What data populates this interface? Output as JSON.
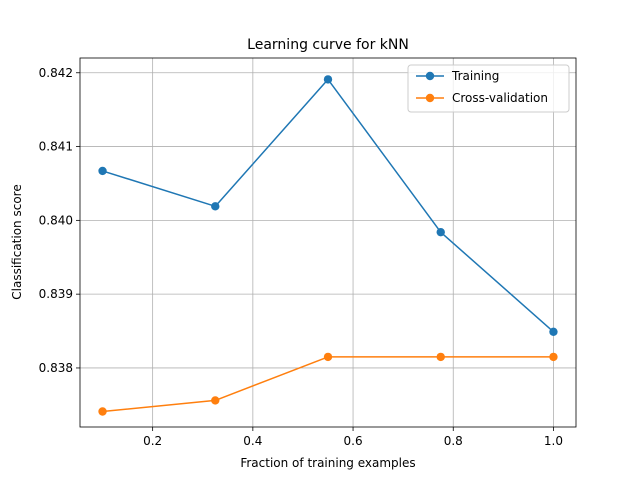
{
  "chart_data": {
    "type": "line",
    "title": "Learning curve for kNN",
    "xlabel": "Fraction of training examples",
    "ylabel": "Classification score",
    "xlim": [
      0.055,
      1.045
    ],
    "ylim": [
      0.8372,
      0.8422
    ],
    "xticks": [
      0.2,
      0.4,
      0.6,
      0.8,
      1.0
    ],
    "xtick_labels": [
      "0.2",
      "0.4",
      "0.6",
      "0.8",
      "1.0"
    ],
    "yticks": [
      0.838,
      0.839,
      0.84,
      0.841,
      0.842
    ],
    "ytick_labels": [
      "0.838",
      "0.839",
      "0.840",
      "0.841",
      "0.842"
    ],
    "grid": true,
    "legend_position": "upper right",
    "x": [
      0.1,
      0.325,
      0.55,
      0.775,
      1.0
    ],
    "series": [
      {
        "name": "Training",
        "color": "#1f77b4",
        "marker": "circle",
        "values": [
          0.84067,
          0.84019,
          0.84191,
          0.83984,
          0.83849
        ]
      },
      {
        "name": "Cross-validation",
        "color": "#ff7f0e",
        "marker": "circle",
        "values": [
          0.83741,
          0.83756,
          0.83815,
          0.83815,
          0.83815
        ]
      }
    ]
  }
}
